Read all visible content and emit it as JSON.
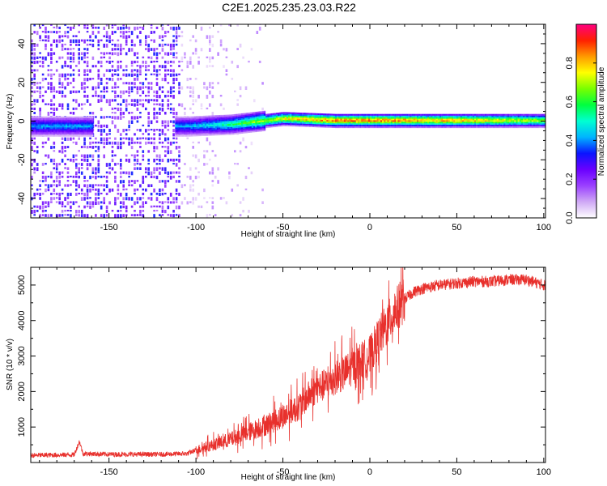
{
  "figure_title": "C2E1.2025.235.23.03.R22",
  "colors": {
    "snr_line": "#e8302c",
    "frame": "#000000",
    "colormap": [
      "#ffffff",
      "#cfa8f5",
      "#9a40ff",
      "#6a00ff",
      "#0a14ff",
      "#00b4ff",
      "#00ffd2",
      "#00ff40",
      "#78ff00",
      "#ffff00",
      "#ff9a00",
      "#ff2000",
      "#ff0080"
    ]
  },
  "chart_data": [
    {
      "type": "heatmap",
      "title": "C2E1.2025.235.23.03.R22",
      "xlabel": "Height of straight line (km)",
      "ylabel": "Frequency (Hz)",
      "xlim": [
        -195,
        101
      ],
      "ylim": [
        -50,
        50
      ],
      "xticks": [
        -150,
        -100,
        -50,
        0,
        50,
        100
      ],
      "yticks": [
        -40,
        -20,
        0,
        20,
        40
      ],
      "colorbar": {
        "label": "Normalized spectral amplitude",
        "range": [
          0,
          1
        ],
        "ticks": [
          0.0,
          0.2,
          0.4,
          0.6,
          0.8
        ]
      },
      "description_points": [
        {
          "x": -170,
          "center_hz": -3,
          "amplitude": 0.45
        },
        {
          "x": -105,
          "center_hz": -3,
          "amplitude": 0.45
        },
        {
          "x": -80,
          "center_hz": -2,
          "amplitude": 0.6
        },
        {
          "x": -50,
          "center_hz": 1,
          "amplitude": 0.85
        },
        {
          "x": -20,
          "center_hz": 0,
          "amplitude": 0.95
        },
        {
          "x": 0,
          "center_hz": 0,
          "amplitude": 0.95
        },
        {
          "x": 50,
          "center_hz": 0,
          "amplitude": 0.9
        },
        {
          "x": 100,
          "center_hz": 0,
          "amplitude": 0.75
        }
      ]
    },
    {
      "type": "line",
      "xlabel": "Height of straight line (km)",
      "ylabel": "SNR (10 * v/v)",
      "xlim": [
        -195,
        101
      ],
      "ylim": [
        0,
        5500
      ],
      "xticks": [
        -150,
        -100,
        -50,
        0,
        50,
        100
      ],
      "yticks": [
        1000,
        2000,
        3000,
        4000,
        5000
      ],
      "series": [
        {
          "name": "SNR",
          "x": [
            -195,
            -170,
            -167,
            -165,
            -150,
            -120,
            -105,
            -100,
            -90,
            -80,
            -70,
            -60,
            -50,
            -40,
            -35,
            -30,
            -25,
            -20,
            -15,
            -10,
            -5,
            0,
            5,
            10,
            15,
            20,
            25,
            30,
            40,
            50,
            60,
            70,
            80,
            90,
            100
          ],
          "values": [
            200,
            220,
            600,
            250,
            230,
            230,
            250,
            350,
            500,
            650,
            850,
            1050,
            1300,
            1600,
            1900,
            2100,
            2200,
            2400,
            2500,
            2700,
            2850,
            3000,
            3500,
            3900,
            4300,
            4600,
            4800,
            4900,
            5000,
            5050,
            5100,
            5100,
            5150,
            5150,
            5000
          ]
        }
      ]
    }
  ]
}
